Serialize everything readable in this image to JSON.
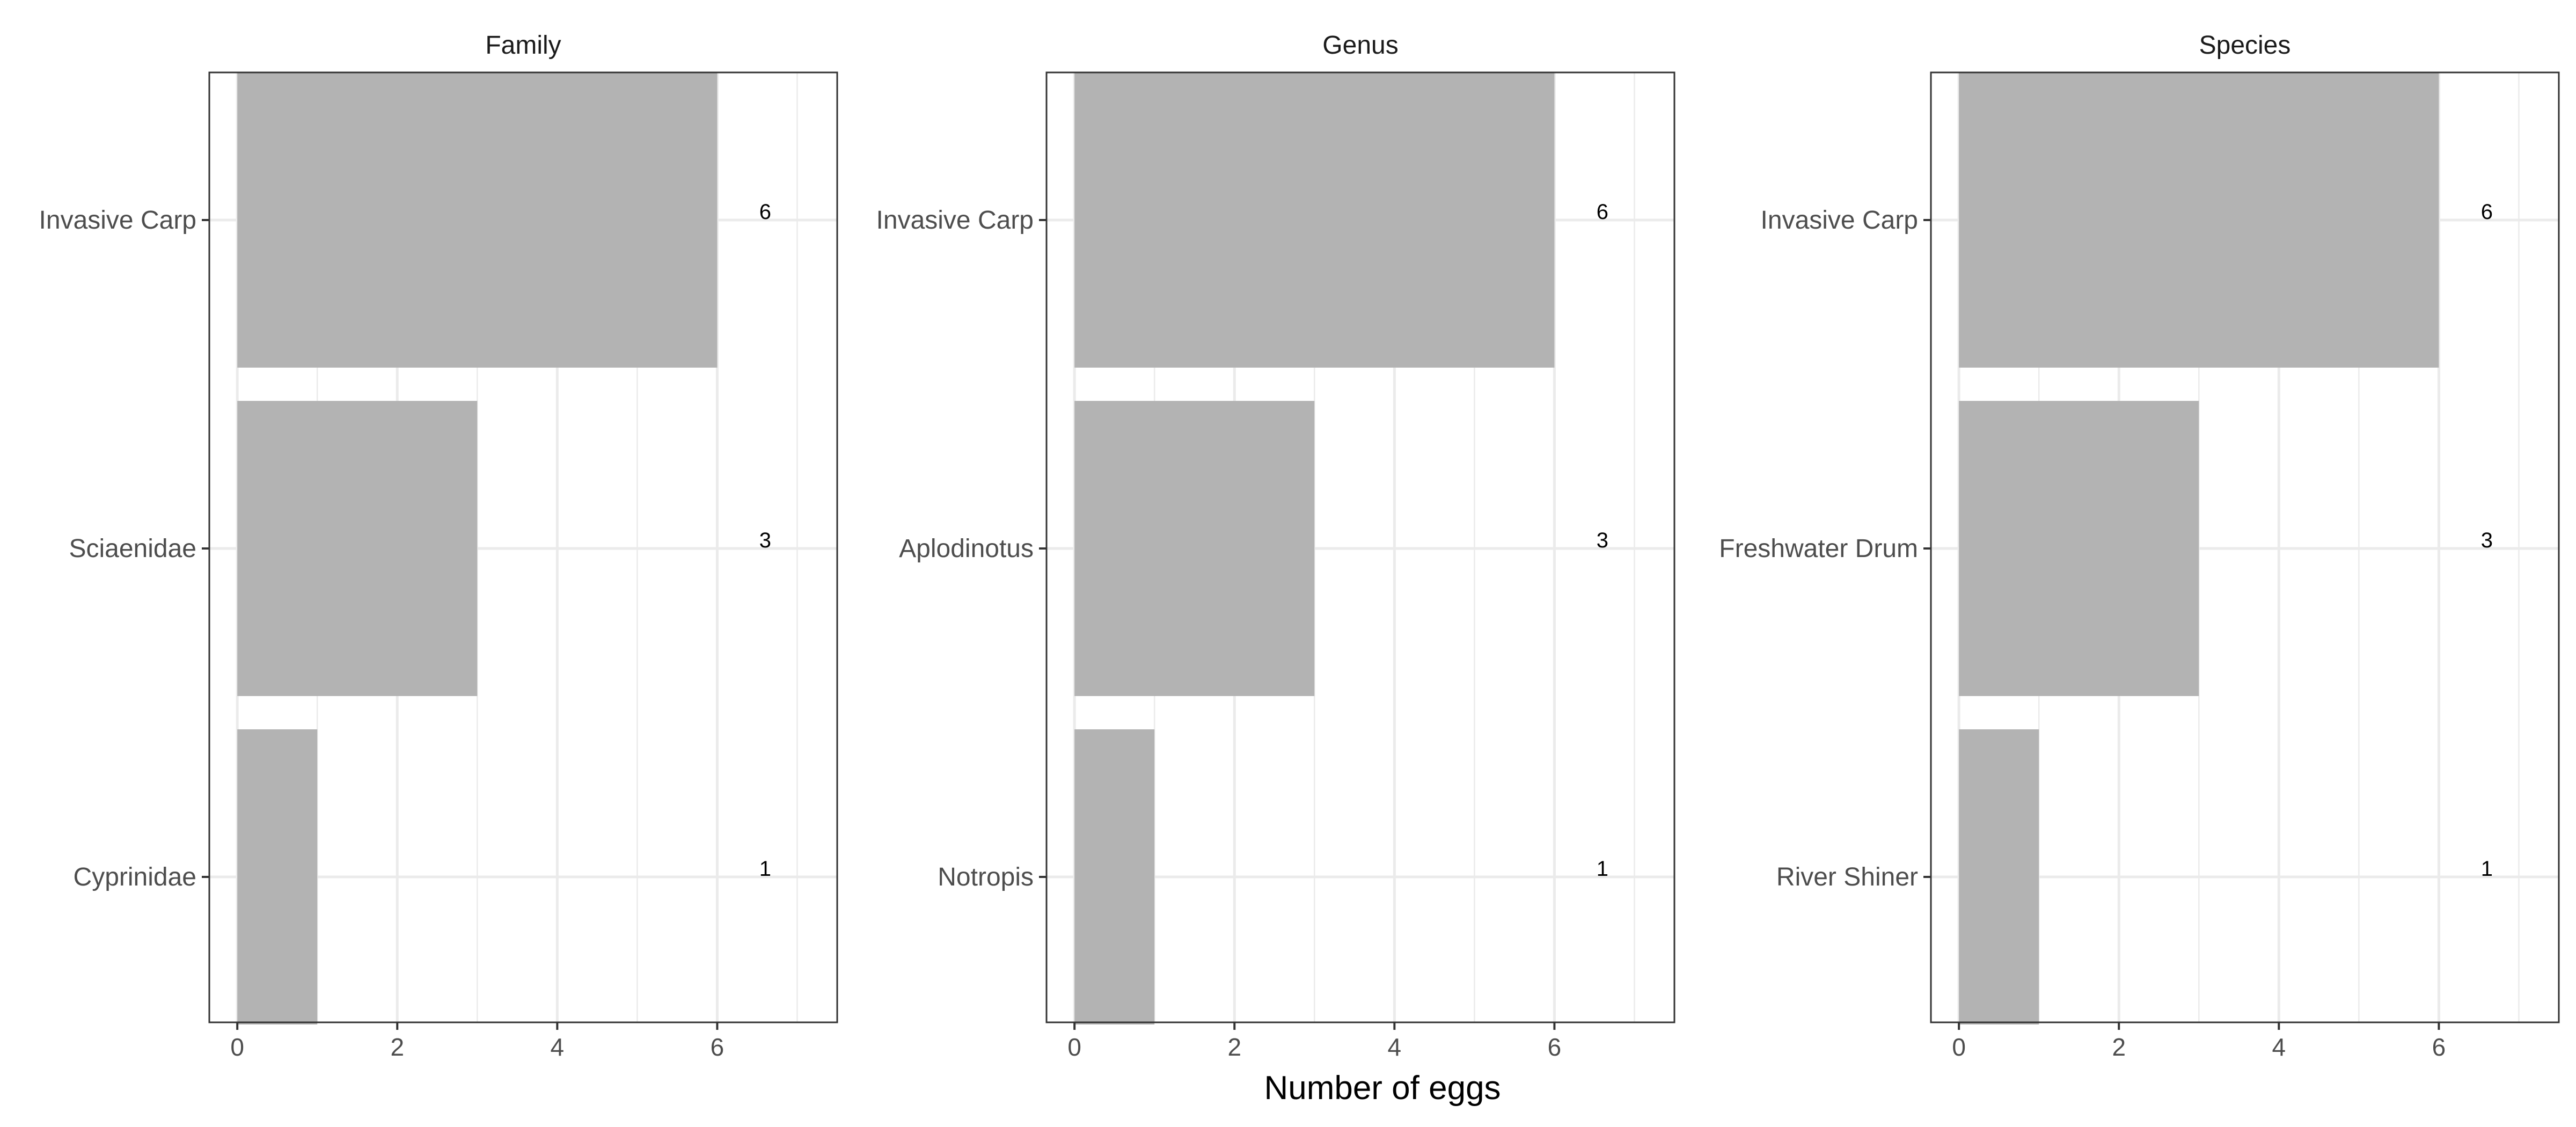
{
  "chart_data": {
    "type": "bar",
    "orientation": "horizontal",
    "xlabel": "Number of eggs",
    "xlim": [
      -0.35,
      7.5
    ],
    "x_ticks": [
      "0",
      "2",
      "4",
      "6"
    ],
    "grid": true,
    "colors": {
      "bar": "#b3b3b3",
      "grid": "#ebebeb",
      "panel_border": "#333333"
    },
    "panels": [
      {
        "title": "Family",
        "categories": [
          "Invasive Carp",
          "Sciaenidae",
          "Cyprinidae"
        ],
        "values": [
          6,
          3,
          1
        ],
        "labels": [
          "6",
          "3",
          "1"
        ]
      },
      {
        "title": "Genus",
        "categories": [
          "Invasive Carp",
          "Aplodinotus",
          "Notropis"
        ],
        "values": [
          6,
          3,
          1
        ],
        "labels": [
          "6",
          "3",
          "1"
        ]
      },
      {
        "title": "Species",
        "categories": [
          "Invasive Carp",
          "Freshwater Drum",
          "River Shiner"
        ],
        "values": [
          6,
          3,
          1
        ],
        "labels": [
          "6",
          "3",
          "1"
        ]
      }
    ]
  }
}
